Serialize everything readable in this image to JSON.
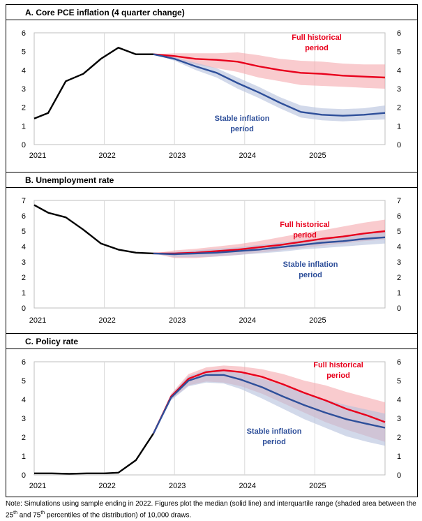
{
  "chart_data": [
    {
      "id": "A",
      "type": "line",
      "title": "A. Core PCE inflation (4 quarter change)",
      "x_ticks": [
        "2021",
        "2022",
        "2023",
        "2024",
        "2025"
      ],
      "y_ticks": [
        "0",
        "1",
        "2",
        "3",
        "4",
        "5",
        "6"
      ],
      "ylim": [
        0,
        6
      ],
      "xlim": [
        2021.0,
        2026.0
      ],
      "grid": "vertical lines at year boundaries",
      "series": [
        {
          "name": "",
          "color": "#000000",
          "x": [
            2021.0,
            2021.2,
            2021.45,
            2021.7,
            2021.95,
            2022.2,
            2022.45,
            2022.7
          ],
          "values": [
            1.4,
            1.7,
            3.4,
            3.8,
            4.6,
            5.2,
            4.85,
            4.85
          ]
        },
        {
          "name": "Full historical period",
          "label": "Full historical\nperiod",
          "color": "#e8001c",
          "band_color": "#f4a0a6",
          "x": [
            2022.7,
            2023.0,
            2023.3,
            2023.6,
            2023.9,
            2024.2,
            2024.5,
            2024.8,
            2025.1,
            2025.4,
            2025.7,
            2026.0
          ],
          "values": [
            4.85,
            4.75,
            4.6,
            4.55,
            4.45,
            4.2,
            4.0,
            3.85,
            3.8,
            3.7,
            3.65,
            3.6
          ],
          "p25": [
            4.85,
            4.6,
            4.3,
            4.1,
            3.9,
            3.6,
            3.4,
            3.2,
            3.15,
            3.1,
            3.05,
            3.0
          ],
          "p75": [
            4.85,
            4.9,
            4.9,
            4.9,
            4.95,
            4.8,
            4.6,
            4.5,
            4.45,
            4.35,
            4.3,
            4.3
          ]
        },
        {
          "name": "Stable inflation period",
          "label": "Stable inflation\nperiod",
          "color": "#2e4f9a",
          "band_color": "#b4bfdc",
          "x": [
            2022.7,
            2023.0,
            2023.3,
            2023.6,
            2023.9,
            2024.2,
            2024.5,
            2024.8,
            2025.1,
            2025.4,
            2025.7,
            2026.0
          ],
          "values": [
            4.85,
            4.6,
            4.2,
            3.85,
            3.3,
            2.8,
            2.25,
            1.75,
            1.6,
            1.55,
            1.6,
            1.7
          ],
          "p25": [
            4.85,
            4.5,
            4.0,
            3.6,
            3.0,
            2.5,
            1.95,
            1.45,
            1.3,
            1.25,
            1.3,
            1.35
          ],
          "p75": [
            4.85,
            4.7,
            4.4,
            4.1,
            3.6,
            3.1,
            2.55,
            2.1,
            1.95,
            1.9,
            1.95,
            2.1
          ]
        }
      ]
    },
    {
      "id": "B",
      "type": "line",
      "title": "B. Unemployment rate",
      "x_ticks": [
        "2021",
        "2022",
        "2023",
        "2024",
        "2025"
      ],
      "y_ticks": [
        "0",
        "1",
        "2",
        "3",
        "4",
        "5",
        "6",
        "7"
      ],
      "ylim": [
        0,
        7
      ],
      "xlim": [
        2021.0,
        2026.0
      ],
      "grid": "vertical lines at year boundaries",
      "series": [
        {
          "name": "",
          "color": "#000000",
          "x": [
            2021.0,
            2021.2,
            2021.45,
            2021.7,
            2021.95,
            2022.2,
            2022.45,
            2022.7
          ],
          "values": [
            6.7,
            6.2,
            5.9,
            5.1,
            4.2,
            3.8,
            3.6,
            3.55
          ]
        },
        {
          "name": "Full historical period",
          "label": "Full historical\nperiod",
          "color": "#e8001c",
          "band_color": "#f4a0a6",
          "x": [
            2022.7,
            2023.0,
            2023.3,
            2023.6,
            2023.9,
            2024.2,
            2024.5,
            2024.8,
            2025.1,
            2025.4,
            2025.7,
            2026.0
          ],
          "values": [
            3.55,
            3.55,
            3.6,
            3.7,
            3.8,
            3.95,
            4.1,
            4.3,
            4.5,
            4.65,
            4.85,
            5.0
          ],
          "p25": [
            3.55,
            3.25,
            3.25,
            3.35,
            3.45,
            3.6,
            3.75,
            3.9,
            4.05,
            4.2,
            4.35,
            4.45
          ],
          "p75": [
            3.55,
            3.75,
            3.85,
            4.0,
            4.15,
            4.35,
            4.6,
            4.85,
            5.05,
            5.3,
            5.55,
            5.75
          ]
        },
        {
          "name": "Stable inflation period",
          "label": "Stable inflation\nperiod",
          "color": "#2e4f9a",
          "band_color": "#b4bfdc",
          "x": [
            2022.7,
            2023.0,
            2023.3,
            2023.6,
            2023.9,
            2024.2,
            2024.5,
            2024.8,
            2025.1,
            2025.4,
            2025.7,
            2026.0
          ],
          "values": [
            3.55,
            3.5,
            3.55,
            3.6,
            3.7,
            3.8,
            3.95,
            4.1,
            4.25,
            4.35,
            4.5,
            4.6
          ],
          "p25": [
            3.55,
            3.3,
            3.3,
            3.35,
            3.45,
            3.55,
            3.65,
            3.8,
            3.9,
            4.0,
            4.1,
            4.2
          ],
          "p75": [
            3.55,
            3.65,
            3.75,
            3.85,
            3.95,
            4.1,
            4.25,
            4.4,
            4.55,
            4.7,
            4.85,
            5.0
          ]
        }
      ]
    },
    {
      "id": "C",
      "type": "line",
      "title": "C. Policy rate",
      "x_ticks": [
        "2021",
        "2022",
        "2023",
        "2024",
        "2025"
      ],
      "y_ticks": [
        "0",
        "1",
        "2",
        "3",
        "4",
        "5",
        "6"
      ],
      "ylim": [
        0,
        6
      ],
      "xlim": [
        2021.0,
        2026.0
      ],
      "grid": "vertical lines at year boundaries",
      "series": [
        {
          "name": "",
          "color": "#000000",
          "x": [
            2021.0,
            2021.25,
            2021.5,
            2021.75,
            2022.0,
            2022.2,
            2022.45,
            2022.7
          ],
          "values": [
            0.08,
            0.08,
            0.06,
            0.08,
            0.08,
            0.12,
            0.78,
            2.2
          ]
        },
        {
          "name": "Full historical period",
          "label": "Full historical\nperiod",
          "color": "#e8001c",
          "band_color": "#f4a0a6",
          "x": [
            2022.7,
            2022.95,
            2023.2,
            2023.45,
            2023.7,
            2023.95,
            2024.25,
            2024.55,
            2024.85,
            2025.15,
            2025.45,
            2025.75,
            2026.0
          ],
          "values": [
            2.2,
            4.15,
            5.1,
            5.45,
            5.55,
            5.45,
            5.2,
            4.8,
            4.35,
            3.95,
            3.5,
            3.15,
            2.8
          ],
          "p25": [
            2.2,
            4.0,
            4.75,
            4.95,
            4.9,
            4.7,
            4.3,
            3.8,
            3.3,
            2.8,
            2.4,
            2.05,
            1.75
          ],
          "p75": [
            2.2,
            4.3,
            5.35,
            5.7,
            5.8,
            5.75,
            5.6,
            5.35,
            5.0,
            4.75,
            4.4,
            4.1,
            3.85
          ]
        },
        {
          "name": "Stable inflation period",
          "label": "Stable inflation\nperiod",
          "color": "#2e4f9a",
          "band_color": "#b4bfdc",
          "x": [
            2022.7,
            2022.95,
            2023.2,
            2023.45,
            2023.7,
            2023.95,
            2024.25,
            2024.55,
            2024.85,
            2025.15,
            2025.45,
            2025.75,
            2026.0
          ],
          "values": [
            2.2,
            4.1,
            5.0,
            5.3,
            5.3,
            5.05,
            4.65,
            4.15,
            3.7,
            3.3,
            2.95,
            2.7,
            2.5
          ],
          "p25": [
            2.2,
            3.95,
            4.7,
            4.9,
            4.85,
            4.55,
            4.05,
            3.5,
            2.95,
            2.5,
            2.05,
            1.75,
            1.55
          ],
          "p75": [
            2.2,
            4.25,
            5.25,
            5.55,
            5.6,
            5.4,
            5.1,
            4.75,
            4.35,
            4.0,
            3.7,
            3.45,
            3.25
          ]
        }
      ]
    }
  ],
  "note": {
    "prefix": "Note: Simulations using sample ending in 2022. Figures plot the median (solid line) and interquartile range (shaded area between the 25",
    "sup1": "th",
    "mid": " and 75",
    "sup2": "th",
    "suffix": " percentiles of the distribution) of 10,000 draws."
  }
}
